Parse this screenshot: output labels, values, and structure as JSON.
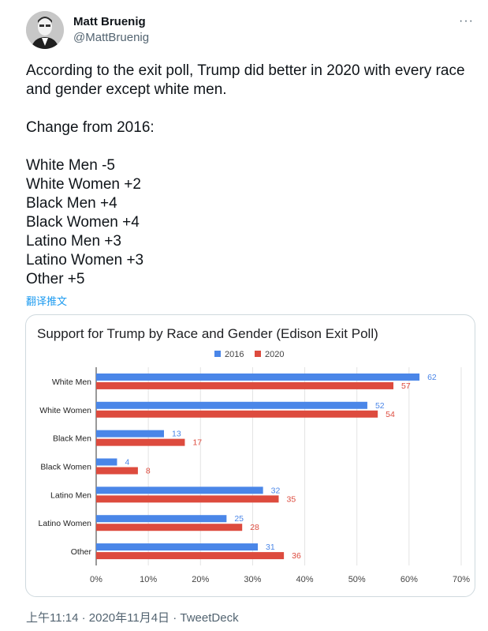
{
  "author": {
    "name": "Matt Bruenig",
    "handle": "@MattBruenig"
  },
  "tweet": {
    "text": "According to the exit poll, Trump did better in 2020 with every race and gender except white men.\n\nChange from 2016:\n\nWhite Men -5\nWhite Women +2\nBlack Men +4\nBlack Women +4\nLatino Men +3\nLatino Women +3\nOther +5",
    "translate_label": "翻译推文"
  },
  "footer": {
    "time": "上午11:14 · 2020年11月4日 · ",
    "source": "TweetDeck"
  },
  "icons": {
    "more": "more-horizontal-icon"
  },
  "colors": {
    "link": "#1d9bf0",
    "series_2016": "#4a86e8",
    "series_2020": "#dd4b3e"
  },
  "chart_data": {
    "type": "bar",
    "orientation": "horizontal",
    "title": "Support for Trump by Race and Gender (Edison Exit Poll)",
    "categories": [
      "White Men",
      "White Women",
      "Black Men",
      "Black Women",
      "Latino Men",
      "Latino Women",
      "Other"
    ],
    "series": [
      {
        "name": "2016",
        "values": [
          62,
          52,
          13,
          4,
          32,
          25,
          31
        ]
      },
      {
        "name": "2020",
        "values": [
          57,
          54,
          17,
          8,
          35,
          28,
          36
        ]
      }
    ],
    "xlim": [
      0,
      70
    ],
    "ticks": [
      0,
      10,
      20,
      30,
      40,
      50,
      60,
      70
    ],
    "tick_labels": [
      "0%",
      "10%",
      "20%",
      "30%",
      "40%",
      "50%",
      "60%",
      "70%"
    ],
    "legend_position": "top",
    "grid": true
  }
}
